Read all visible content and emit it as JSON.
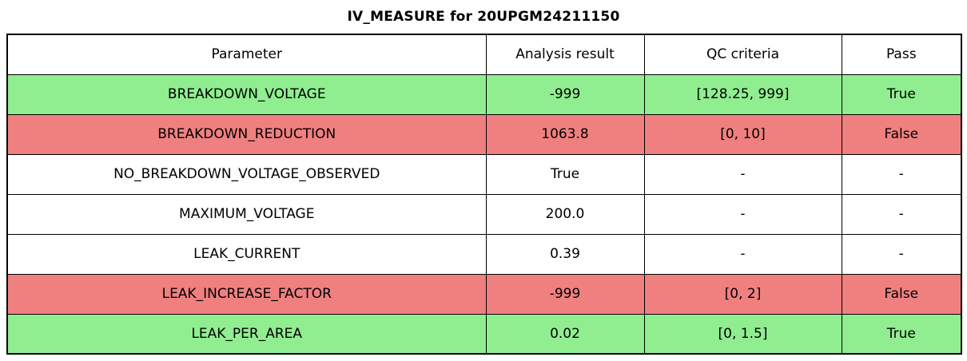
{
  "chart_data": {
    "type": "table",
    "title": "IV_MEASURE for 20UPGM24211150",
    "columns": [
      "Parameter",
      "Analysis result",
      "QC criteria",
      "Pass"
    ],
    "rows": [
      {
        "parameter": "BREAKDOWN_VOLTAGE",
        "result": "-999",
        "criteria": "[128.25, 999]",
        "pass": "True",
        "status": "pass"
      },
      {
        "parameter": "BREAKDOWN_REDUCTION",
        "result": "1063.8",
        "criteria": "[0, 10]",
        "pass": "False",
        "status": "fail"
      },
      {
        "parameter": "NO_BREAKDOWN_VOLTAGE_OBSERVED",
        "result": "True",
        "criteria": "-",
        "pass": "-",
        "status": "neutral"
      },
      {
        "parameter": "MAXIMUM_VOLTAGE",
        "result": "200.0",
        "criteria": "-",
        "pass": "-",
        "status": "neutral"
      },
      {
        "parameter": "LEAK_CURRENT",
        "result": "0.39",
        "criteria": "-",
        "pass": "-",
        "status": "neutral"
      },
      {
        "parameter": "LEAK_INCREASE_FACTOR",
        "result": "-999",
        "criteria": "[0, 2]",
        "pass": "False",
        "status": "fail"
      },
      {
        "parameter": "LEAK_PER_AREA",
        "result": "0.02",
        "criteria": "[0, 1.5]",
        "pass": "True",
        "status": "pass"
      }
    ],
    "row_colors": {
      "pass": "#90ee90",
      "fail": "#f08080",
      "neutral": "#ffffff"
    },
    "border_color": "#000000",
    "layout": {
      "header_background": "#ffffff",
      "grid": true,
      "legend_position": "none"
    }
  }
}
